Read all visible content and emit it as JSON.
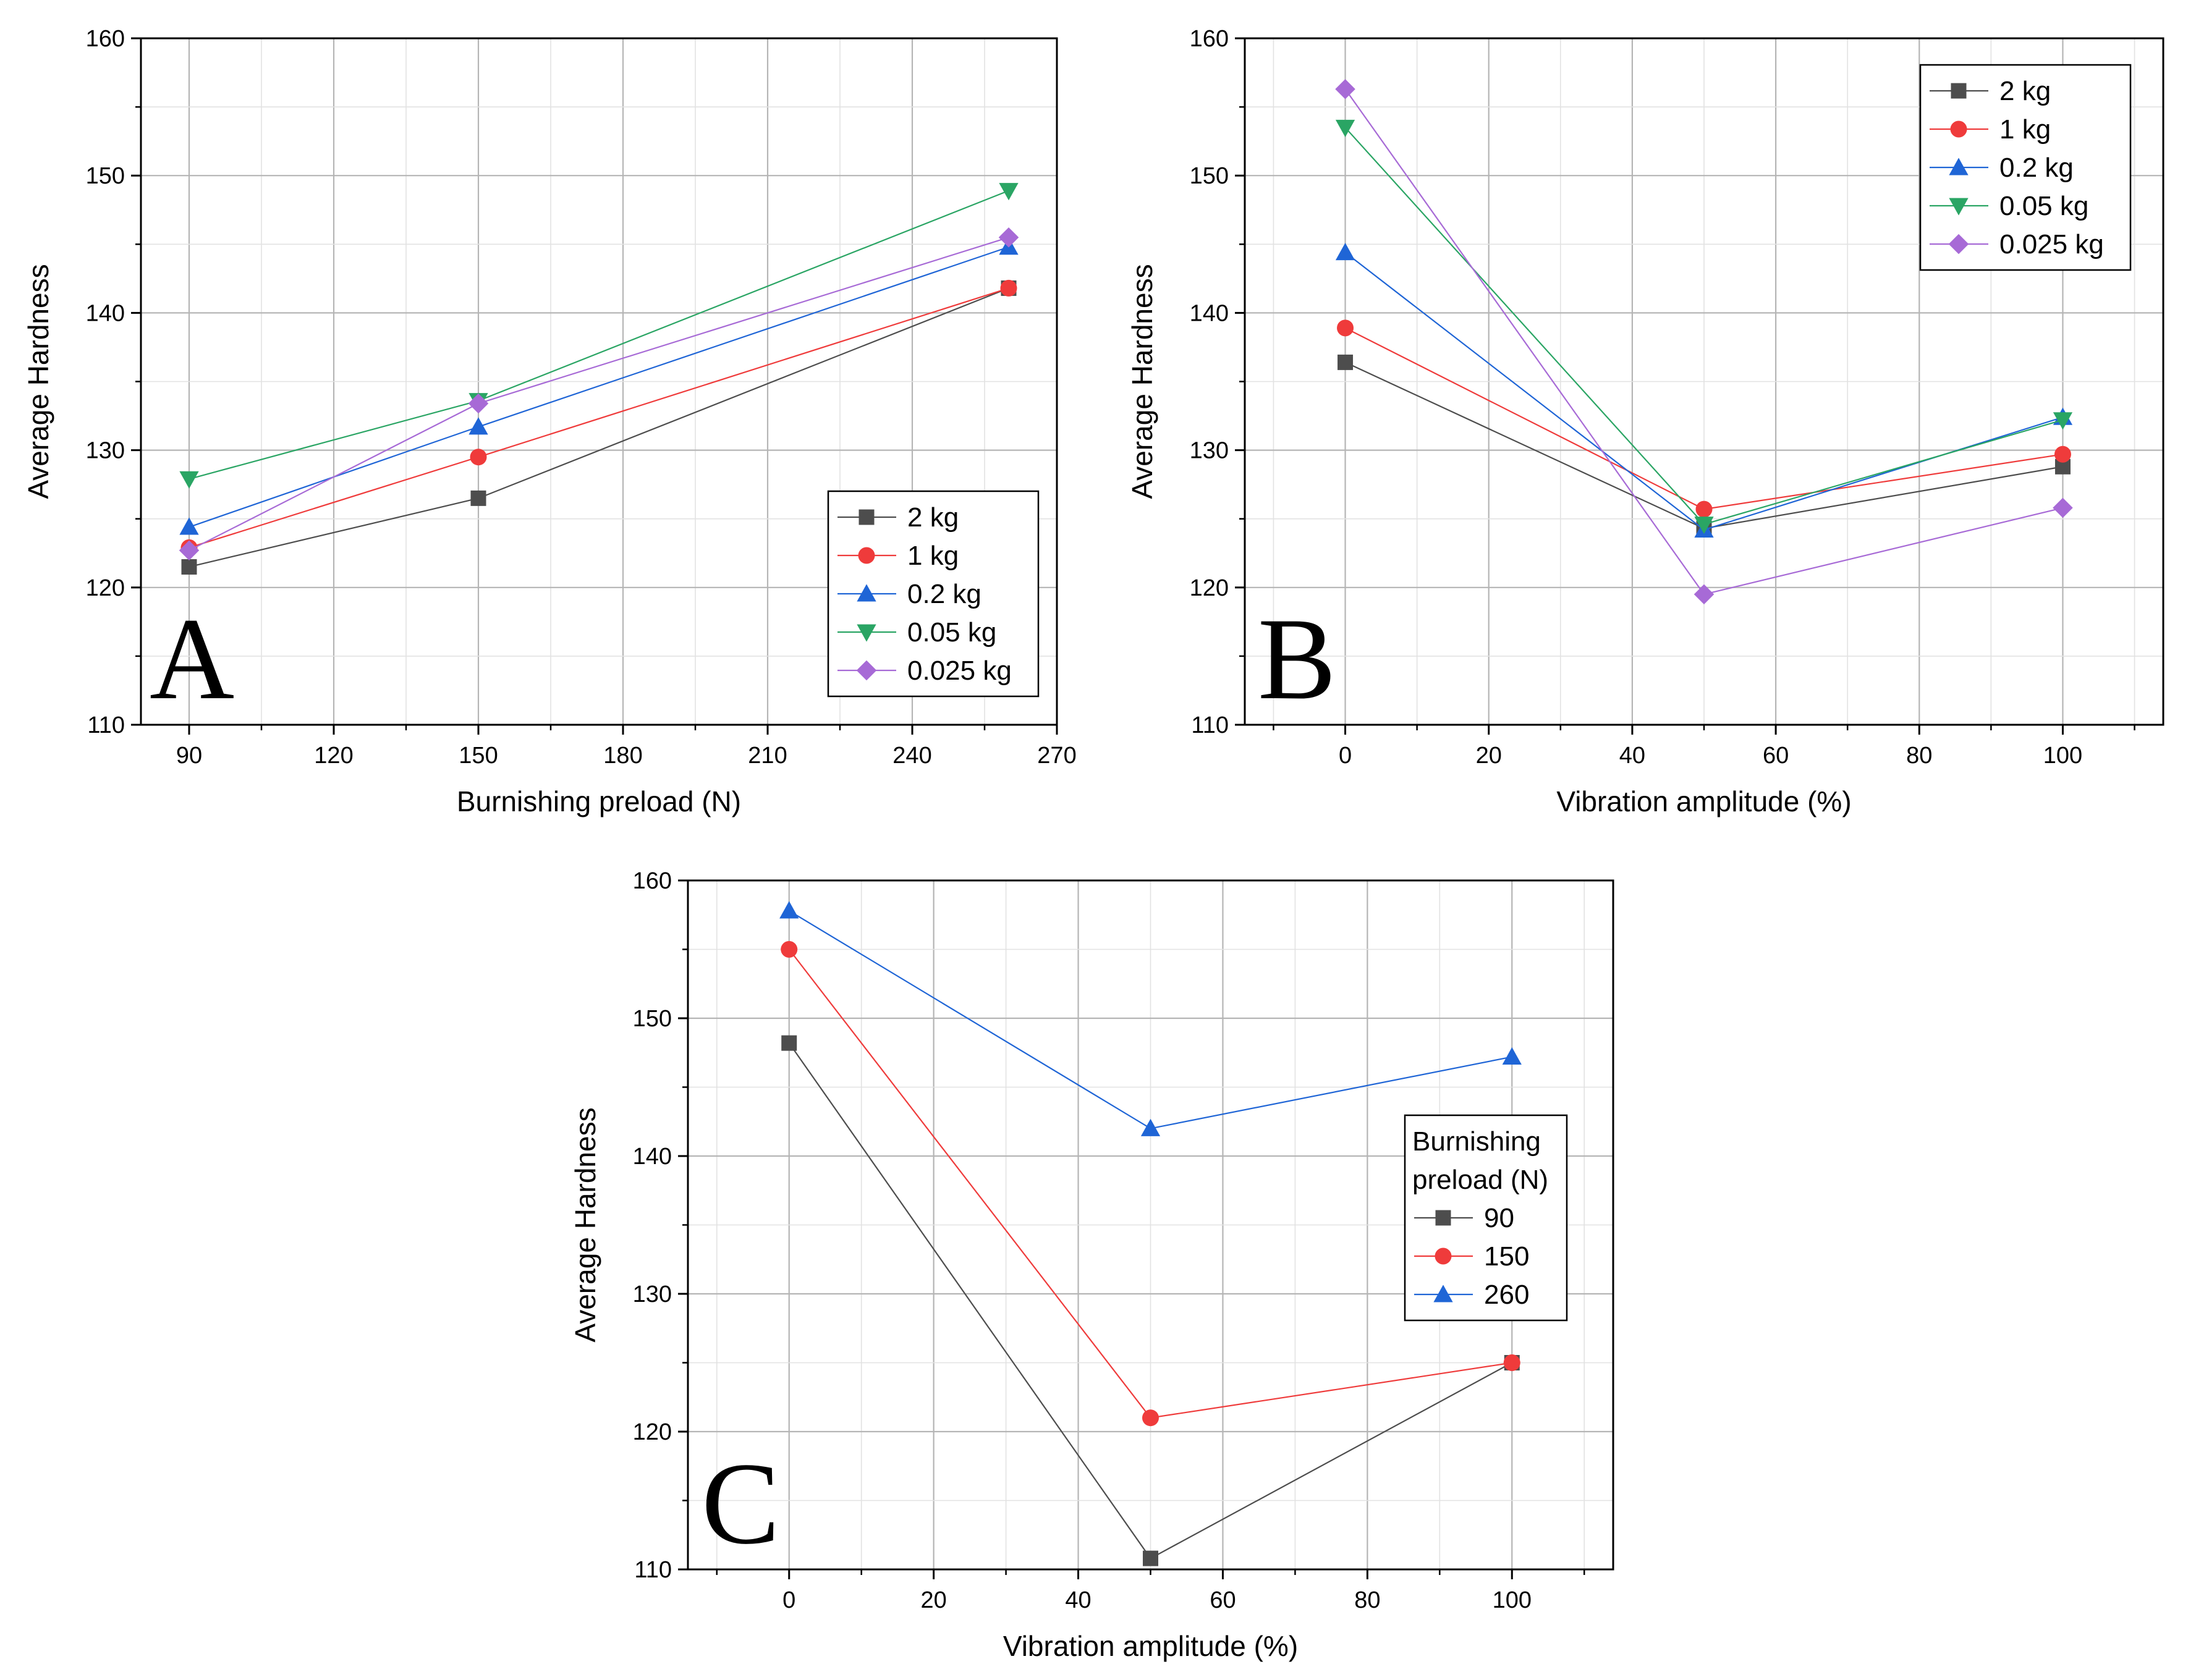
{
  "chart_data": [
    {
      "id": "A",
      "type": "line",
      "panel_label": "A",
      "xlabel": "Burnishing preload (N)",
      "ylabel": "Average Hardness",
      "xlim": [
        80,
        270
      ],
      "ylim": [
        110,
        160
      ],
      "x_ticks": [
        90,
        120,
        150,
        180,
        210,
        240,
        270
      ],
      "y_ticks": [
        110,
        120,
        130,
        140,
        150,
        160
      ],
      "grid": true,
      "legend_position": "bottom-right",
      "legend_title": "",
      "x": [
        90,
        150,
        260
      ],
      "series": [
        {
          "name": "2 kg",
          "values": [
            121.5,
            126.5,
            141.8
          ],
          "color": "#4d4d4d",
          "marker": "square"
        },
        {
          "name": "1 kg",
          "values": [
            122.9,
            129.5,
            141.8
          ],
          "color": "#ef3b3b",
          "marker": "circle"
        },
        {
          "name": "0.2 kg",
          "values": [
            124.4,
            131.7,
            144.8
          ],
          "color": "#1f65d6",
          "marker": "triangle-up"
        },
        {
          "name": "0.05 kg",
          "values": [
            127.9,
            133.6,
            148.9
          ],
          "color": "#2aa564",
          "marker": "triangle-down"
        },
        {
          "name": "0.025 kg",
          "values": [
            122.7,
            133.4,
            145.5
          ],
          "color": "#a76ad6",
          "marker": "diamond"
        }
      ]
    },
    {
      "id": "B",
      "type": "line",
      "panel_label": "B",
      "xlabel": "Vibration amplitude (%)",
      "ylabel": "Average Hardness",
      "xlim": [
        -14,
        114
      ],
      "ylim": [
        110,
        160
      ],
      "x_ticks": [
        0,
        20,
        40,
        60,
        80,
        100
      ],
      "y_ticks": [
        110,
        120,
        130,
        140,
        150,
        160
      ],
      "grid": true,
      "legend_position": "top-right",
      "legend_title": "",
      "x": [
        0,
        50,
        100
      ],
      "series": [
        {
          "name": "2 kg",
          "values": [
            136.4,
            124.3,
            128.8
          ],
          "color": "#4d4d4d",
          "marker": "square"
        },
        {
          "name": "1 kg",
          "values": [
            138.9,
            125.7,
            129.7
          ],
          "color": "#ef3b3b",
          "marker": "circle"
        },
        {
          "name": "0.2 kg",
          "values": [
            144.4,
            124.2,
            132.4
          ],
          "color": "#1f65d6",
          "marker": "triangle-up"
        },
        {
          "name": "0.05 kg",
          "values": [
            153.5,
            124.6,
            132.2
          ],
          "color": "#2aa564",
          "marker": "triangle-down"
        },
        {
          "name": "0.025 kg",
          "values": [
            156.3,
            119.5,
            125.8
          ],
          "color": "#a76ad6",
          "marker": "diamond"
        }
      ]
    },
    {
      "id": "C",
      "type": "line",
      "panel_label": "C",
      "xlabel": "Vibration amplitude (%)",
      "ylabel": "Average Hardness",
      "xlim": [
        -14,
        114
      ],
      "ylim": [
        110,
        160
      ],
      "x_ticks": [
        0,
        20,
        40,
        60,
        80,
        100
      ],
      "y_ticks": [
        110,
        120,
        130,
        140,
        150,
        160
      ],
      "grid": true,
      "legend_position": "right",
      "legend_title": [
        "Burnishing",
        "preload (N)"
      ],
      "x": [
        0,
        50,
        100
      ],
      "series": [
        {
          "name": "90",
          "values": [
            148.2,
            110.8,
            125.0
          ],
          "color": "#4d4d4d",
          "marker": "square"
        },
        {
          "name": "150",
          "values": [
            155.0,
            121.0,
            125.0
          ],
          "color": "#ef3b3b",
          "marker": "circle"
        },
        {
          "name": "260",
          "values": [
            157.8,
            142.0,
            147.2
          ],
          "color": "#1f65d6",
          "marker": "triangle-up"
        }
      ]
    }
  ]
}
